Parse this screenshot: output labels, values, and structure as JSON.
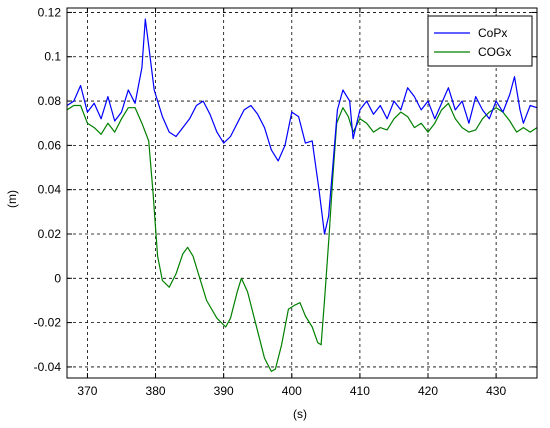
{
  "chart_data": {
    "type": "line",
    "xlabel": "(s)",
    "ylabel": "(m)",
    "xlim": [
      367,
      436
    ],
    "ylim": [
      -0.045,
      0.122
    ],
    "xticks": [
      370,
      380,
      390,
      400,
      410,
      420,
      430
    ],
    "xtick_labels": [
      "370",
      "380",
      "390",
      "400",
      "410",
      "420",
      "430"
    ],
    "yticks": [
      -0.04,
      -0.02,
      0,
      0.02,
      0.04,
      0.06,
      0.08,
      0.1,
      0.12
    ],
    "ytick_labels": [
      "-0.04",
      "-0.02",
      "0",
      "0.02",
      "0.04",
      "0.06",
      "0.08",
      "0.1",
      "0.12"
    ],
    "grid": true,
    "legend_position": "top-right",
    "series": [
      {
        "name": "CoPx",
        "color": "#0000ff",
        "points": [
          [
            367.0,
            0.078
          ],
          [
            368.0,
            0.08
          ],
          [
            369.0,
            0.087
          ],
          [
            370.0,
            0.075
          ],
          [
            371.0,
            0.079
          ],
          [
            372.0,
            0.072
          ],
          [
            373.0,
            0.082
          ],
          [
            374.0,
            0.071
          ],
          [
            375.0,
            0.075
          ],
          [
            376.0,
            0.085
          ],
          [
            377.0,
            0.079
          ],
          [
            378.0,
            0.095
          ],
          [
            378.5,
            0.117
          ],
          [
            379.0,
            0.105
          ],
          [
            379.8,
            0.085
          ],
          [
            381.0,
            0.073
          ],
          [
            382.0,
            0.066
          ],
          [
            383.0,
            0.064
          ],
          [
            384.0,
            0.068
          ],
          [
            385.0,
            0.072
          ],
          [
            386.0,
            0.078
          ],
          [
            387.0,
            0.08
          ],
          [
            388.0,
            0.074
          ],
          [
            389.0,
            0.066
          ],
          [
            390.0,
            0.061
          ],
          [
            391.0,
            0.064
          ],
          [
            392.0,
            0.07
          ],
          [
            393.0,
            0.076
          ],
          [
            394.0,
            0.078
          ],
          [
            395.0,
            0.074
          ],
          [
            396.0,
            0.068
          ],
          [
            397.0,
            0.058
          ],
          [
            398.0,
            0.053
          ],
          [
            399.0,
            0.06
          ],
          [
            400.0,
            0.075
          ],
          [
            401.0,
            0.073
          ],
          [
            402.0,
            0.061
          ],
          [
            403.0,
            0.062
          ],
          [
            404.0,
            0.04
          ],
          [
            404.8,
            0.02
          ],
          [
            405.4,
            0.028
          ],
          [
            406.0,
            0.05
          ],
          [
            406.7,
            0.076
          ],
          [
            407.5,
            0.085
          ],
          [
            408.5,
            0.08
          ],
          [
            409.0,
            0.063
          ],
          [
            410.0,
            0.076
          ],
          [
            411.0,
            0.08
          ],
          [
            412.0,
            0.074
          ],
          [
            413.0,
            0.078
          ],
          [
            414.0,
            0.072
          ],
          [
            415.0,
            0.08
          ],
          [
            416.0,
            0.076
          ],
          [
            417.0,
            0.086
          ],
          [
            418.0,
            0.082
          ],
          [
            419.0,
            0.076
          ],
          [
            420.0,
            0.08
          ],
          [
            421.0,
            0.072
          ],
          [
            422.0,
            0.079
          ],
          [
            423.0,
            0.086
          ],
          [
            424.0,
            0.076
          ],
          [
            425.0,
            0.08
          ],
          [
            426.0,
            0.07
          ],
          [
            427.0,
            0.082
          ],
          [
            428.0,
            0.076
          ],
          [
            429.0,
            0.072
          ],
          [
            430.0,
            0.08
          ],
          [
            431.0,
            0.075
          ],
          [
            432.0,
            0.083
          ],
          [
            432.7,
            0.091
          ],
          [
            433.5,
            0.076
          ],
          [
            434.0,
            0.07
          ],
          [
            435.0,
            0.078
          ],
          [
            436.0,
            0.077
          ]
        ]
      },
      {
        "name": "COGx",
        "color": "#008000",
        "points": [
          [
            367.0,
            0.076
          ],
          [
            368.0,
            0.078
          ],
          [
            369.0,
            0.078
          ],
          [
            370.0,
            0.07
          ],
          [
            371.0,
            0.068
          ],
          [
            372.0,
            0.065
          ],
          [
            373.0,
            0.07
          ],
          [
            374.0,
            0.066
          ],
          [
            375.0,
            0.072
          ],
          [
            376.0,
            0.077
          ],
          [
            377.0,
            0.077
          ],
          [
            378.0,
            0.07
          ],
          [
            379.0,
            0.062
          ],
          [
            379.6,
            0.04
          ],
          [
            380.3,
            0.01
          ],
          [
            381.0,
            -0.001
          ],
          [
            382.0,
            -0.004
          ],
          [
            383.0,
            0.002
          ],
          [
            384.0,
            0.011
          ],
          [
            384.7,
            0.014
          ],
          [
            385.5,
            0.01
          ],
          [
            386.5,
            0.0
          ],
          [
            387.5,
            -0.01
          ],
          [
            389.0,
            -0.018
          ],
          [
            390.3,
            -0.022
          ],
          [
            391.0,
            -0.018
          ],
          [
            392.0,
            -0.006
          ],
          [
            392.6,
            0.0
          ],
          [
            393.5,
            -0.006
          ],
          [
            394.5,
            -0.018
          ],
          [
            396.0,
            -0.036
          ],
          [
            397.0,
            -0.042
          ],
          [
            397.6,
            -0.041
          ],
          [
            398.5,
            -0.03
          ],
          [
            399.5,
            -0.014
          ],
          [
            400.5,
            -0.012
          ],
          [
            401.2,
            -0.011
          ],
          [
            402.0,
            -0.017
          ],
          [
            403.0,
            -0.022
          ],
          [
            403.8,
            -0.029
          ],
          [
            404.3,
            -0.03
          ],
          [
            404.8,
            -0.01
          ],
          [
            405.5,
            0.02
          ],
          [
            406.0,
            0.045
          ],
          [
            406.6,
            0.07
          ],
          [
            407.5,
            0.077
          ],
          [
            408.3,
            0.073
          ],
          [
            409.0,
            0.066
          ],
          [
            410.0,
            0.072
          ],
          [
            411.0,
            0.07
          ],
          [
            412.0,
            0.066
          ],
          [
            413.0,
            0.068
          ],
          [
            414.0,
            0.067
          ],
          [
            415.0,
            0.072
          ],
          [
            416.0,
            0.075
          ],
          [
            417.0,
            0.073
          ],
          [
            418.0,
            0.068
          ],
          [
            419.0,
            0.07
          ],
          [
            420.0,
            0.066
          ],
          [
            421.0,
            0.07
          ],
          [
            422.0,
            0.076
          ],
          [
            423.0,
            0.079
          ],
          [
            424.0,
            0.072
          ],
          [
            425.0,
            0.068
          ],
          [
            426.0,
            0.066
          ],
          [
            427.0,
            0.067
          ],
          [
            428.0,
            0.072
          ],
          [
            429.0,
            0.075
          ],
          [
            430.0,
            0.077
          ],
          [
            431.0,
            0.075
          ],
          [
            432.0,
            0.071
          ],
          [
            433.0,
            0.066
          ],
          [
            434.0,
            0.068
          ],
          [
            435.0,
            0.066
          ],
          [
            436.0,
            0.068
          ]
        ]
      }
    ]
  }
}
